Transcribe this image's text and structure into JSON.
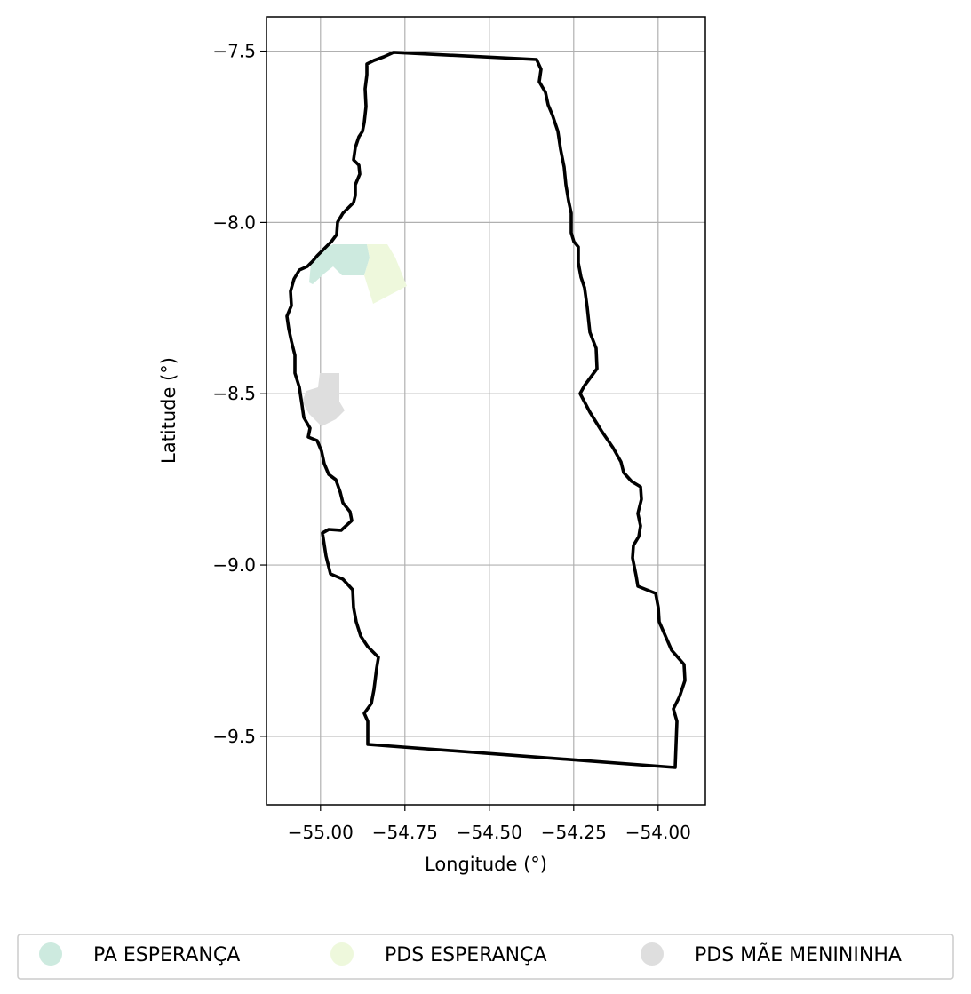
{
  "map": {
    "xlabel": "Longitude (°)",
    "ylabel": "Latitude (°)",
    "xlim": [
      -55.16,
      -53.86
    ],
    "ylim": [
      -9.7,
      -7.4
    ],
    "xticks": [
      -55.0,
      -54.75,
      -54.5,
      -54.25,
      -54.0
    ],
    "xtick_labels": [
      "−55.00",
      "−54.75",
      "−54.50",
      "−54.25",
      "−54.00"
    ],
    "yticks": [
      -7.5,
      -8.0,
      -8.5,
      -9.0,
      -9.5
    ],
    "ytick_labels": [
      "−7.5",
      "−8.0",
      "−8.5",
      "−9.0",
      "−9.5"
    ],
    "grid": true,
    "legend_position": "bottom"
  },
  "legend": {
    "items": [
      {
        "label": "PA ESPERANÇA",
        "color": "#cdeadf"
      },
      {
        "label": "PDS ESPERANÇA",
        "color": "#eef8dc"
      },
      {
        "label": "PDS MÃE MENININHA",
        "color": "#dedede"
      }
    ]
  },
  "boundary_color": "#000000"
}
